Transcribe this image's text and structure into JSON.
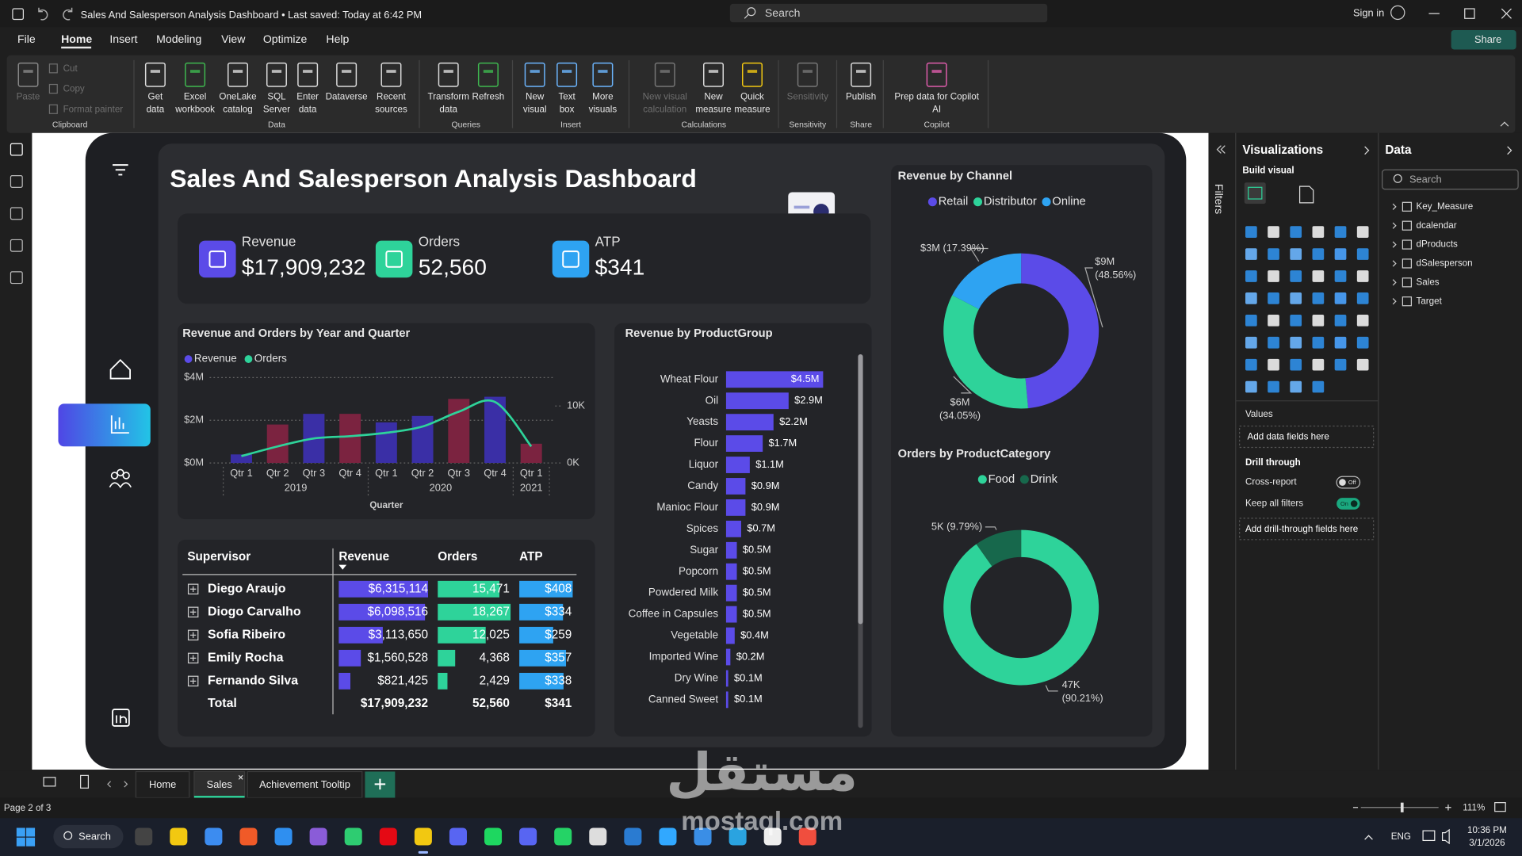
{
  "app": {
    "title": "Sales And Salesperson Analysis Dashboard • Last saved: Today at 6:42 PM",
    "search": "Search",
    "sign_in": "Sign in",
    "menu": [
      "File",
      "Home",
      "Insert",
      "Modeling",
      "View",
      "Optimize",
      "Help"
    ],
    "active_menu": 1,
    "share": "Share"
  },
  "ribbon": {
    "clipboard_small": [
      "Cut",
      "Copy",
      "Format painter"
    ],
    "buttons": [
      {
        "label": [
          "Paste"
        ],
        "enabled": false
      },
      {
        "label": [
          "Get",
          "data"
        ]
      },
      {
        "label": [
          "Excel",
          "workbook"
        ]
      },
      {
        "label": [
          "OneLake",
          "catalog"
        ]
      },
      {
        "label": [
          "SQL",
          "Server"
        ]
      },
      {
        "label": [
          "Enter",
          "data"
        ]
      },
      {
        "label": [
          "Dataverse"
        ]
      },
      {
        "label": [
          "Recent",
          "sources"
        ]
      },
      {
        "label": [
          "Transform",
          "data"
        ]
      },
      {
        "label": [
          "Refresh"
        ]
      },
      {
        "label": [
          "New",
          "visual"
        ]
      },
      {
        "label": [
          "Text",
          "box"
        ]
      },
      {
        "label": [
          "More",
          "visuals"
        ]
      },
      {
        "label": [
          "New visual",
          "calculation"
        ],
        "enabled": false
      },
      {
        "label": [
          "New",
          "measure"
        ]
      },
      {
        "label": [
          "Quick",
          "measure"
        ]
      },
      {
        "label": [
          "Sensitivity"
        ],
        "enabled": false
      },
      {
        "label": [
          "Publish"
        ]
      },
      {
        "label": [
          "Prep data for Copilot",
          "AI"
        ]
      }
    ],
    "groups": [
      "Clipboard",
      "Data",
      "Queries",
      "Insert",
      "Calculations",
      "Sensitivity",
      "Share",
      "Copilot"
    ]
  },
  "dashboard": {
    "title": "Sales And Salesperson Analysis Dashboard",
    "kpis": [
      {
        "label": "Revenue",
        "value": "$17,909,232",
        "color": "#5b4be8"
      },
      {
        "label": "Orders",
        "value": "52,560",
        "color": "#2ed39a"
      },
      {
        "label": "ATP",
        "value": "$341",
        "color": "#2ea3f2"
      }
    ],
    "combo": {
      "type": "combo",
      "title": "Revenue and Orders by Year and Quarter",
      "categories": [
        "Qtr 1",
        "Qtr 2",
        "Qtr 3",
        "Qtr 4",
        "Qtr 1",
        "Qtr 2",
        "Qtr 3",
        "Qtr 4",
        "Qtr 1"
      ],
      "years": [
        "2019",
        "2019",
        "2019",
        "2019",
        "2020",
        "2020",
        "2020",
        "2020",
        "2021"
      ],
      "x_label": "Quarter",
      "series": [
        {
          "name": "Revenue",
          "type": "bar",
          "color": "#5b4be8",
          "values": [
            400000,
            1800000,
            2300000,
            2300000,
            1900000,
            2200000,
            3000000,
            3100000,
            900000
          ],
          "bar_colors": [
            "#3a2fa6",
            "#7b2340",
            "#3a2fa6",
            "#7b2340",
            "#3a2fa6",
            "#3a2fa6",
            "#7b2340",
            "#3a2fa6",
            "#7b2340"
          ]
        },
        {
          "name": "Orders",
          "type": "line",
          "axis": "y2",
          "color": "#2ed39a",
          "values": [
            1200,
            2900,
            4300,
            4700,
            5300,
            6400,
            9000,
            10700,
            2900
          ]
        }
      ],
      "ylim": [
        0,
        4000000
      ],
      "yticks": [
        {
          "value": 0,
          "label": "$0M"
        },
        {
          "value": 2000000,
          "label": "$2M"
        },
        {
          "value": 4000000,
          "label": "$4M"
        }
      ],
      "y2lim": [
        0,
        15000
      ],
      "y2ticks": [
        {
          "value": 0,
          "label": "0K"
        },
        {
          "value": 10000,
          "label": "10K"
        }
      ],
      "grid": true
    },
    "product": {
      "type": "bar",
      "orientation": "horizontal",
      "title": "Revenue by ProductGroup",
      "categories": [
        "Wheat Flour",
        "Oil",
        "Yeasts",
        "Flour",
        "Liquor",
        "Candy",
        "Manioc Flour",
        "Spices",
        "Sugar",
        "Popcorn",
        "Powdered Milk",
        "Coffee in Capsules",
        "Vegetable",
        "Imported Wine",
        "Dry Wine",
        "Canned Sweet"
      ],
      "values": [
        4500000,
        2900000,
        2200000,
        1700000,
        1100000,
        900000,
        900000,
        700000,
        500000,
        500000,
        500000,
        500000,
        400000,
        200000,
        100000,
        100000
      ],
      "value_labels": [
        "$4.5M",
        "$2.9M",
        "$2.2M",
        "$1.7M",
        "$1.1M",
        "$0.9M",
        "$0.9M",
        "$0.7M",
        "$0.5M",
        "$0.5M",
        "$0.5M",
        "$0.5M",
        "$0.4M",
        "$0.2M",
        "$0.1M",
        "$0.1M"
      ],
      "color": "#5b4be8"
    },
    "channel": {
      "type": "pie",
      "donut": true,
      "title": "Revenue by Channel",
      "categories": [
        "Retail",
        "Distributor",
        "Online"
      ],
      "values": [
        48.56,
        34.05,
        17.39
      ],
      "value_labels": [
        [
          "$9M",
          "(48.56%)"
        ],
        [
          "$6M",
          "(34.05%)"
        ],
        [
          "$3M (17.39%)"
        ]
      ],
      "colors": [
        "#5b4be8",
        "#2ed39a",
        "#2ea3f2"
      ]
    },
    "category": {
      "type": "pie",
      "donut": true,
      "title": "Orders by ProductCategory",
      "categories": [
        "Food",
        "Drink"
      ],
      "values": [
        90.21,
        9.79
      ],
      "value_labels": [
        [
          "47K",
          "(90.21%)"
        ],
        [
          "5K (9.79%)"
        ]
      ],
      "colors": [
        "#2ed39a",
        "#17684c"
      ]
    },
    "table": {
      "columns": [
        "Supervisor",
        "Revenue",
        "Orders",
        "ATP"
      ],
      "bar_colors": [
        "#5b4be8",
        "#2ed39a",
        "#2ea3f2"
      ],
      "rows": [
        {
          "name": "Diego Araujo",
          "cells": [
            {
              "value": 6315114,
              "label": "$6,315,114"
            },
            {
              "value": 15471,
              "label": "15,471"
            },
            {
              "value": 408,
              "label": "$408"
            }
          ]
        },
        {
          "name": "Diogo Carvalho",
          "cells": [
            {
              "value": 6098516,
              "label": "$6,098,516"
            },
            {
              "value": 18267,
              "label": "18,267"
            },
            {
              "value": 334,
              "label": "$334"
            }
          ]
        },
        {
          "name": "Sofia Ribeiro",
          "cells": [
            {
              "value": 3113650,
              "label": "$3,113,650"
            },
            {
              "value": 12025,
              "label": "12,025"
            },
            {
              "value": 259,
              "label": "$259"
            }
          ]
        },
        {
          "name": "Emily Rocha",
          "cells": [
            {
              "value": 1560528,
              "label": "$1,560,528"
            },
            {
              "value": 4368,
              "label": "4,368"
            },
            {
              "value": 357,
              "label": "$357"
            }
          ]
        },
        {
          "name": "Fernando Silva",
          "cells": [
            {
              "value": 821425,
              "label": "$821,425"
            },
            {
              "value": 2429,
              "label": "2,429"
            },
            {
              "value": 338,
              "label": "$338"
            }
          ]
        }
      ],
      "total": {
        "name": "Total",
        "cells": [
          "$17,909,232",
          "52,560",
          "$341"
        ]
      }
    }
  },
  "filters": "Filters",
  "visualizations": {
    "title": "Visualizations",
    "build": "Build visual",
    "values": "Values",
    "values_placeholder": "Add data fields here",
    "drill": "Drill through",
    "cross_report": "Cross-report",
    "cross_state": "Off",
    "keep_filters": "Keep all filters",
    "keep_state": "On",
    "drill_placeholder": "Add drill-through fields here"
  },
  "data_pane": {
    "title": "Data",
    "search": "Search",
    "tables": [
      "Key_Measure",
      "dcalendar",
      "dProducts",
      "dSalesperson",
      "Sales",
      "Target"
    ]
  },
  "tabs": {
    "pages": [
      "Home",
      "Sales",
      "Achievement Tooltip"
    ],
    "active": 1
  },
  "status": {
    "page": "Page 2 of 3",
    "zoom": "111%"
  },
  "taskbar": {
    "search": "Search",
    "lang": "ENG",
    "time": "10:36 PM",
    "date": "3/1/2026"
  },
  "watermark": {
    "arabic": "مستقل",
    "latin": "mostaql.com"
  }
}
